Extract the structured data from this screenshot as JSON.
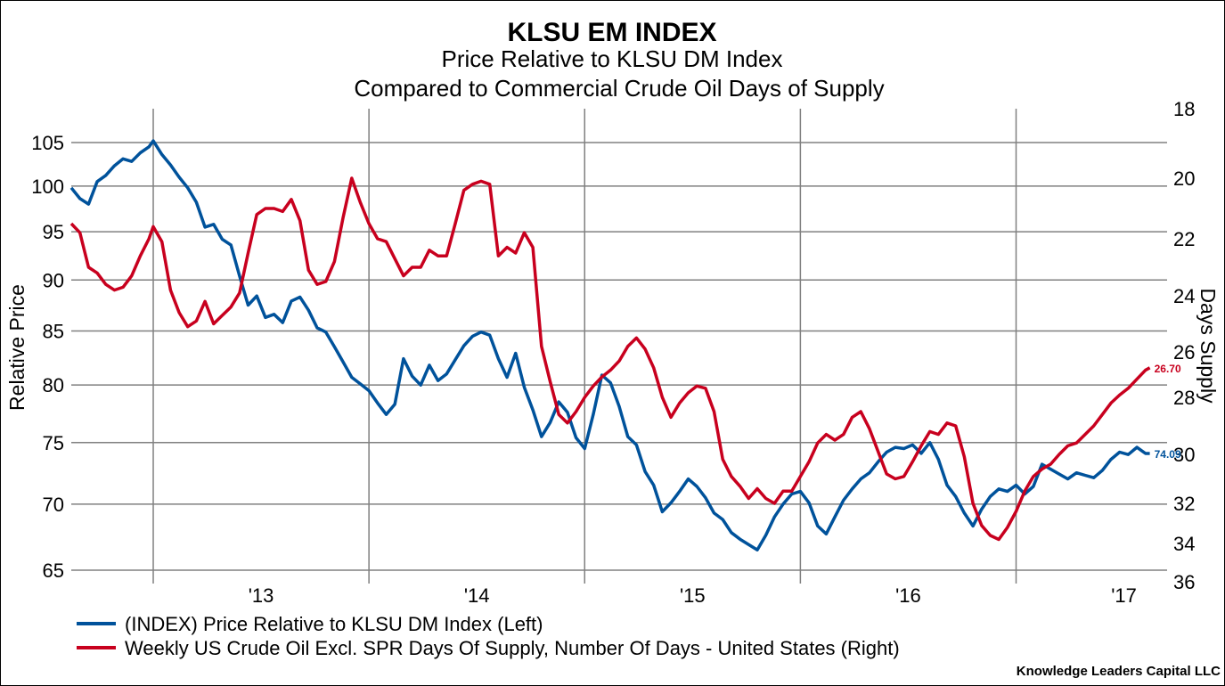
{
  "chart_data": {
    "type": "line",
    "title": "KLSU EM INDEX",
    "subtitle_lines": [
      "Price Relative to KLSU DM Index",
      "Compared to Commercial Crude Oil Days of Supply"
    ],
    "xlabel": "",
    "x_tick_labels": [
      "'13",
      "'14",
      "'15",
      "'16",
      "'17"
    ],
    "x_ticks": [
      2013,
      2014,
      2015,
      2016,
      2017
    ],
    "xlim": [
      2012.62,
      2017.7
    ],
    "y_left": {
      "label": "Relative Price",
      "ticks": [
        65,
        70,
        75,
        80,
        85,
        90,
        95,
        100,
        105
      ],
      "scale": "log",
      "ylim": [
        63.2,
        107
      ]
    },
    "y_right": {
      "label": "Days Supply",
      "ticks": [
        18,
        20,
        22,
        24,
        26,
        28,
        30,
        32,
        34,
        36
      ],
      "inverted": true,
      "ylim": [
        18,
        36
      ]
    },
    "grid": true,
    "legend_position": "bottom",
    "series": [
      {
        "name": "(INDEX) Price Relative to KLSU DM Index  (Left)",
        "axis": "left",
        "color": "#00529b",
        "last_value_label": "74.09",
        "x": [
          2012.62,
          2012.66,
          2012.7,
          2012.74,
          2012.78,
          2012.82,
          2012.86,
          2012.9,
          2012.94,
          2012.98,
          2013.0,
          2013.04,
          2013.08,
          2013.12,
          2013.16,
          2013.2,
          2013.24,
          2013.28,
          2013.32,
          2013.36,
          2013.4,
          2013.44,
          2013.48,
          2013.52,
          2013.56,
          2013.6,
          2013.64,
          2013.68,
          2013.72,
          2013.76,
          2013.8,
          2013.84,
          2013.88,
          2013.92,
          2013.96,
          2014.0,
          2014.04,
          2014.08,
          2014.12,
          2014.16,
          2014.2,
          2014.24,
          2014.28,
          2014.32,
          2014.36,
          2014.4,
          2014.44,
          2014.48,
          2014.52,
          2014.56,
          2014.6,
          2014.64,
          2014.68,
          2014.72,
          2014.76,
          2014.8,
          2014.84,
          2014.88,
          2014.92,
          2014.96,
          2015.0,
          2015.04,
          2015.08,
          2015.12,
          2015.16,
          2015.2,
          2015.24,
          2015.28,
          2015.32,
          2015.36,
          2015.4,
          2015.44,
          2015.48,
          2015.52,
          2015.56,
          2015.6,
          2015.64,
          2015.68,
          2015.72,
          2015.76,
          2015.8,
          2015.84,
          2015.88,
          2015.92,
          2015.96,
          2016.0,
          2016.04,
          2016.08,
          2016.12,
          2016.16,
          2016.2,
          2016.24,
          2016.28,
          2016.32,
          2016.36,
          2016.4,
          2016.44,
          2016.48,
          2016.52,
          2016.56,
          2016.6,
          2016.64,
          2016.68,
          2016.72,
          2016.76,
          2016.8,
          2016.84,
          2016.88,
          2016.92,
          2016.96,
          2017.0,
          2017.04,
          2017.08,
          2017.12,
          2017.16,
          2017.2,
          2017.24,
          2017.28,
          2017.32,
          2017.36,
          2017.4,
          2017.44,
          2017.48,
          2017.52,
          2017.56,
          2017.6,
          2017.62
        ],
        "values": [
          99.8,
          98.6,
          98.0,
          100.5,
          101.2,
          102.3,
          103.1,
          102.8,
          103.8,
          104.5,
          105.2,
          103.6,
          102.4,
          101.0,
          99.8,
          98.2,
          95.5,
          95.8,
          94.2,
          93.6,
          90.4,
          87.5,
          88.4,
          86.3,
          86.6,
          85.8,
          87.9,
          88.3,
          87.0,
          85.3,
          84.9,
          83.5,
          82.1,
          80.7,
          80.1,
          79.5,
          78.4,
          77.4,
          78.3,
          82.4,
          80.8,
          80.0,
          81.8,
          80.4,
          81.0,
          82.3,
          83.6,
          84.5,
          84.9,
          84.6,
          82.4,
          80.7,
          82.9,
          79.8,
          77.8,
          75.5,
          76.7,
          78.5,
          77.6,
          75.4,
          74.5,
          77.4,
          80.9,
          80.2,
          78.1,
          75.5,
          74.8,
          72.6,
          71.5,
          69.4,
          70.1,
          71.0,
          72.0,
          71.4,
          70.5,
          69.3,
          68.8,
          67.8,
          67.3,
          66.9,
          66.5,
          67.6,
          69.0,
          70.0,
          70.8,
          71.0,
          70.1,
          68.3,
          67.7,
          69.0,
          70.3,
          71.2,
          72.0,
          72.5,
          73.4,
          74.2,
          74.6,
          74.5,
          74.8,
          74.1,
          75.0,
          73.6,
          71.5,
          70.6,
          69.3,
          68.3,
          69.6,
          70.6,
          71.2,
          71.0,
          71.5,
          70.8,
          71.4,
          73.2,
          72.8,
          72.4,
          72.0,
          72.5,
          72.3,
          72.1,
          72.7,
          73.6,
          74.2,
          74.0,
          74.6,
          74.09,
          74.09
        ]
      },
      {
        "name": "Weekly US Crude Oil Excl. SPR Days Of Supply, Number Of Days - United States  (Right)",
        "axis": "right",
        "color": "#c8001e",
        "last_value_label": "26.70",
        "x": [
          2012.62,
          2012.66,
          2012.7,
          2012.74,
          2012.78,
          2012.82,
          2012.86,
          2012.9,
          2012.94,
          2012.98,
          2013.0,
          2013.04,
          2013.08,
          2013.12,
          2013.16,
          2013.2,
          2013.24,
          2013.28,
          2013.32,
          2013.36,
          2013.4,
          2013.44,
          2013.48,
          2013.52,
          2013.56,
          2013.6,
          2013.64,
          2013.68,
          2013.72,
          2013.76,
          2013.8,
          2013.84,
          2013.88,
          2013.92,
          2013.96,
          2014.0,
          2014.04,
          2014.08,
          2014.12,
          2014.16,
          2014.2,
          2014.24,
          2014.28,
          2014.32,
          2014.36,
          2014.4,
          2014.44,
          2014.48,
          2014.52,
          2014.56,
          2014.6,
          2014.64,
          2014.68,
          2014.72,
          2014.76,
          2014.8,
          2014.84,
          2014.88,
          2014.92,
          2014.96,
          2015.0,
          2015.04,
          2015.08,
          2015.12,
          2015.16,
          2015.2,
          2015.24,
          2015.28,
          2015.32,
          2015.36,
          2015.4,
          2015.44,
          2015.48,
          2015.52,
          2015.56,
          2015.6,
          2015.64,
          2015.68,
          2015.72,
          2015.76,
          2015.8,
          2015.84,
          2015.88,
          2015.92,
          2015.96,
          2016.0,
          2016.04,
          2016.08,
          2016.12,
          2016.16,
          2016.2,
          2016.24,
          2016.28,
          2016.32,
          2016.36,
          2016.4,
          2016.44,
          2016.48,
          2016.52,
          2016.56,
          2016.6,
          2016.64,
          2016.68,
          2016.72,
          2016.76,
          2016.8,
          2016.84,
          2016.88,
          2016.92,
          2016.96,
          2017.0,
          2017.04,
          2017.08,
          2017.12,
          2017.16,
          2017.2,
          2017.24,
          2017.28,
          2017.32,
          2017.36,
          2017.4,
          2017.44,
          2017.48,
          2017.52,
          2017.56,
          2017.6,
          2017.62
        ],
        "values": [
          21.5,
          21.8,
          23.0,
          23.2,
          23.6,
          23.8,
          23.7,
          23.3,
          22.6,
          22.0,
          21.6,
          22.1,
          23.8,
          24.6,
          25.1,
          24.9,
          24.2,
          25.0,
          24.7,
          24.4,
          23.9,
          22.5,
          21.2,
          21.0,
          21.0,
          21.1,
          20.7,
          21.4,
          23.1,
          23.6,
          23.5,
          22.8,
          21.3,
          20.0,
          20.8,
          21.5,
          22.0,
          22.1,
          22.7,
          23.3,
          23.0,
          23.0,
          22.4,
          22.6,
          22.6,
          21.5,
          20.4,
          20.2,
          20.1,
          20.2,
          22.6,
          22.3,
          22.5,
          21.8,
          22.3,
          25.8,
          27.3,
          28.6,
          28.9,
          28.5,
          28.0,
          27.5,
          27.1,
          26.8,
          26.4,
          25.8,
          25.5,
          25.9,
          26.7,
          28.0,
          28.7,
          28.2,
          27.8,
          27.5,
          27.6,
          28.5,
          30.2,
          30.9,
          31.3,
          31.8,
          31.4,
          31.8,
          32.0,
          31.5,
          31.5,
          30.9,
          30.3,
          29.6,
          29.3,
          29.5,
          29.3,
          28.7,
          28.5,
          29.1,
          29.9,
          30.8,
          31.0,
          30.9,
          30.3,
          29.7,
          29.2,
          29.3,
          28.9,
          29.0,
          30.1,
          32.0,
          33.1,
          33.6,
          33.8,
          33.2,
          32.4,
          31.5,
          30.9,
          30.6,
          30.4,
          30.0,
          29.7,
          29.6,
          29.3,
          29.0,
          28.6,
          28.2,
          27.9,
          27.6,
          27.2,
          26.8,
          26.7
        ]
      }
    ],
    "credit": "Knowledge Leaders Capital LLC"
  }
}
